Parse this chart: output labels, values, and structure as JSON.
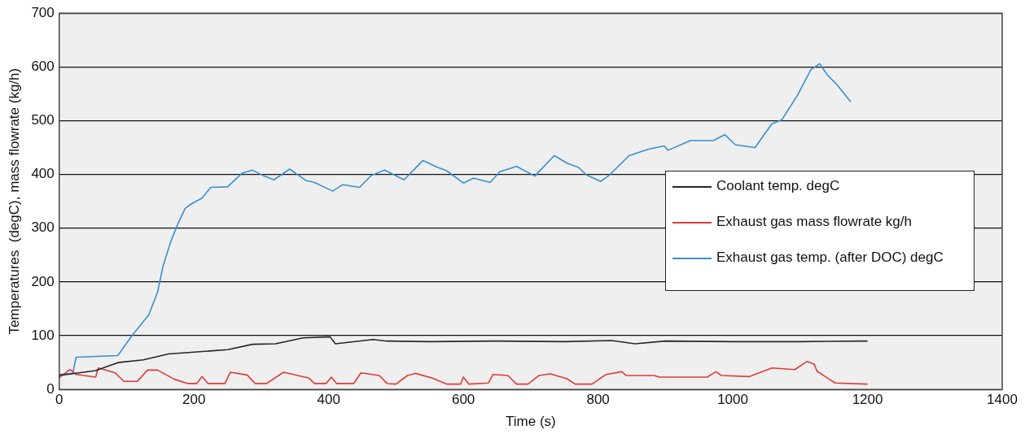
{
  "chart_data": {
    "type": "line",
    "xlabel": "Time (s)",
    "ylabel": "Temperatures  (degC), mass flowrate (kg/h)",
    "xlim": [
      0,
      1400
    ],
    "xticks": [
      0,
      200,
      400,
      600,
      800,
      1000,
      1200,
      1400
    ],
    "ylim": [
      0,
      700
    ],
    "yticks": [
      0,
      100,
      200,
      300,
      400,
      500,
      600,
      700
    ],
    "grid": "y",
    "legend": "right",
    "marker": "none",
    "line_style": "solid",
    "series": [
      {
        "name": "Coolant temp. degC",
        "color": "#262626",
        "x": [
          0,
          54,
          87,
          125,
          162,
          250,
          287,
          321,
          362,
          402,
          410,
          466,
          487,
          550,
          650,
          750,
          820,
          855,
          900,
          1000,
          1100,
          1200
        ],
        "values": [
          26,
          35,
          50,
          55,
          66,
          74,
          84,
          85,
          96,
          98,
          85,
          93,
          90,
          89,
          90,
          89,
          91,
          85,
          90,
          89,
          89,
          90
        ]
      },
      {
        "name": "Exhaust gas mass flowrate kg/h",
        "color": "#e03a3a",
        "x": [
          0,
          16,
          25,
          54,
          58,
          83,
          96,
          116,
          131,
          146,
          171,
          191,
          204,
          212,
          221,
          246,
          254,
          279,
          291,
          308,
          333,
          371,
          379,
          396,
          404,
          412,
          437,
          448,
          475,
          487,
          500,
          517,
          529,
          554,
          575,
          596,
          600,
          608,
          637,
          644,
          666,
          679,
          696,
          712,
          729,
          754,
          766,
          791,
          812,
          835,
          842,
          883,
          891,
          962,
          975,
          983,
          1025,
          1058,
          1092,
          1110,
          1121,
          1125,
          1152,
          1200
        ],
        "values": [
          22,
          37,
          28,
          23,
          40,
          31,
          15,
          15,
          36,
          36,
          19,
          11,
          11,
          24,
          11,
          11,
          32,
          27,
          11,
          11,
          32,
          21,
          11,
          11,
          23,
          11,
          11,
          31,
          26,
          11,
          10,
          26,
          30,
          21,
          10,
          10,
          23,
          10,
          12,
          28,
          26,
          10,
          10,
          26,
          29,
          20,
          10,
          10,
          28,
          33,
          26,
          26,
          23,
          23,
          33,
          26,
          24,
          40,
          37,
          52,
          47,
          34,
          12,
          10
        ]
      },
      {
        "name": "Exhaust gas temp. (after DOC) degC",
        "color": "#3a8fd0",
        "x": [
          0,
          20,
          25,
          87,
          108,
          133,
          146,
          154,
          165,
          175,
          187,
          196,
          212,
          225,
          250,
          271,
          287,
          304,
          319,
          342,
          366,
          379,
          406,
          421,
          446,
          463,
          483,
          512,
          540,
          562,
          575,
          600,
          615,
          640,
          654,
          679,
          706,
          735,
          754,
          771,
          783,
          804,
          817,
          846,
          875,
          898,
          904,
          937,
          971,
          988,
          1004,
          1033,
          1058,
          1073,
          1096,
          1116,
          1129,
          1141,
          1154,
          1175
        ],
        "values": [
          28,
          30,
          60,
          63,
          100,
          139,
          181,
          229,
          273,
          305,
          337,
          345,
          356,
          376,
          377,
          402,
          408,
          397,
          390,
          410,
          389,
          385,
          369,
          381,
          376,
          398,
          408,
          390,
          426,
          413,
          407,
          384,
          393,
          385,
          405,
          415,
          397,
          435,
          421,
          413,
          399,
          387,
          399,
          435,
          447,
          453,
          445,
          463,
          463,
          474,
          455,
          450,
          494,
          502,
          547,
          595,
          606,
          584,
          568,
          535
        ]
      }
    ]
  }
}
